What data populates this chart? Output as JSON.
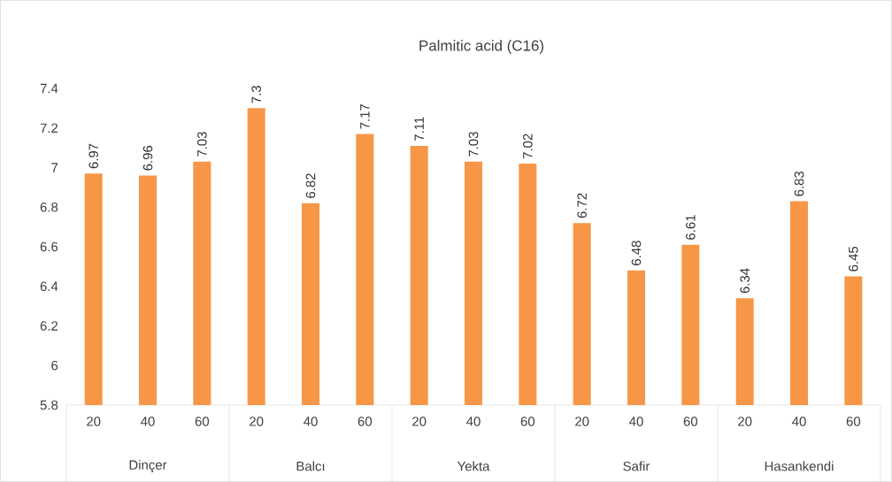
{
  "chart_data": {
    "type": "bar",
    "title": "Palmitic acid (C16)",
    "categories": [
      "20",
      "40",
      "60",
      "20",
      "40",
      "60",
      "20",
      "40",
      "60",
      "20",
      "40",
      "60",
      "20",
      "40",
      "60"
    ],
    "values": [
      6.97,
      6.96,
      7.03,
      7.3,
      6.82,
      7.17,
      7.11,
      7.03,
      7.02,
      6.72,
      6.48,
      6.61,
      6.34,
      6.83,
      6.45
    ],
    "color": "#f79646",
    "ylim": [
      5.8,
      7.4
    ],
    "yticks": [
      5.8,
      6,
      6.2,
      6.4,
      6.6,
      6.8,
      7,
      7.2,
      7.4
    ],
    "value_labels": [
      "6.97",
      "6.96",
      "7.03",
      "7.3",
      "6.82",
      "7.17",
      "7.11",
      "7.03",
      "7.02",
      "6.72",
      "6.48",
      "6.61",
      "6.34",
      "6.83",
      "6.45"
    ],
    "annotations": [
      "Dinçer",
      "Balcı",
      "Yekta",
      "Safir",
      "Hasankendi"
    ]
  }
}
